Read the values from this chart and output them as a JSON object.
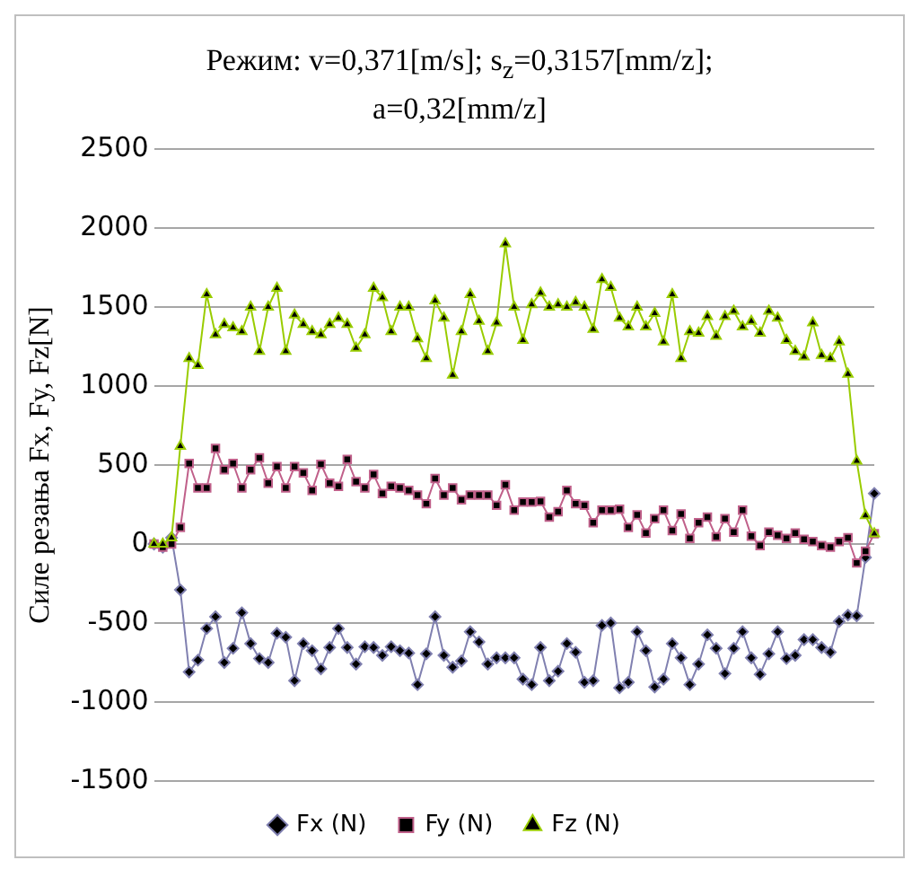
{
  "chart_data": {
    "type": "line",
    "title": "Режим: v=0,371[m/s]; s$_{z}$=0,3157[mm/z]; a=0,32[mm/z]",
    "ylabel": "Силе резања Fx, Fy, Fz[N]",
    "categories": [
      null,
      null,
      null,
      null,
      null,
      null,
      null,
      null,
      null,
      null,
      null,
      null,
      null,
      null,
      null,
      null,
      null,
      null,
      null,
      null,
      null,
      null,
      null,
      null,
      null,
      null,
      null,
      null,
      null,
      null,
      null,
      null,
      null,
      null,
      null,
      null,
      null,
      null,
      null,
      null,
      null,
      null,
      null,
      null,
      null,
      null,
      null,
      null,
      null,
      null,
      null,
      null,
      null,
      null,
      null,
      null,
      null,
      null,
      null,
      null,
      null,
      null,
      null,
      null,
      null,
      null,
      null,
      null,
      null,
      null,
      null,
      null,
      null,
      null,
      null,
      null,
      null,
      null,
      null,
      null,
      null,
      null,
      null
    ],
    "series": [
      {
        "name": "Fx (N)",
        "color": "#8080b0",
        "marker": "diamond",
        "values": [
          0,
          -20,
          40,
          -290,
          -810,
          -735,
          -535,
          -460,
          -750,
          -660,
          -435,
          -630,
          -725,
          -750,
          -565,
          -590,
          -865,
          -630,
          -675,
          -790,
          -655,
          -535,
          -655,
          -760,
          -650,
          -655,
          -705,
          -650,
          -675,
          -690,
          -890,
          -695,
          -460,
          -705,
          -780,
          -740,
          -555,
          -620,
          -760,
          -720,
          -720,
          -720,
          -855,
          -890,
          -655,
          -865,
          -805,
          -630,
          -685,
          -875,
          -865,
          -515,
          -500,
          -910,
          -875,
          -555,
          -675,
          -905,
          -855,
          -630,
          -720,
          -890,
          -760,
          -575,
          -660,
          -820,
          -660,
          -555,
          -720,
          -825,
          -695,
          -555,
          -725,
          -705,
          -605,
          -605,
          -655,
          -685,
          -490,
          -450,
          -455,
          -85,
          320
        ]
      },
      {
        "name": "Fy (N)",
        "color": "#c0608a",
        "marker": "square",
        "values": [
          0,
          -20,
          0,
          105,
          510,
          355,
          355,
          605,
          470,
          510,
          355,
          470,
          545,
          385,
          490,
          355,
          490,
          450,
          340,
          505,
          385,
          365,
          535,
          395,
          355,
          440,
          320,
          365,
          355,
          340,
          310,
          255,
          415,
          310,
          355,
          280,
          310,
          310,
          310,
          245,
          375,
          215,
          265,
          265,
          270,
          170,
          205,
          340,
          255,
          245,
          135,
          215,
          215,
          220,
          105,
          185,
          70,
          160,
          215,
          85,
          190,
          35,
          135,
          170,
          45,
          160,
          75,
          215,
          50,
          -10,
          75,
          55,
          35,
          70,
          30,
          15,
          -10,
          -20,
          15,
          40,
          -120,
          -45,
          65
        ]
      },
      {
        "name": "Fz (N)",
        "color": "#99cc00",
        "marker": "triangle",
        "values": [
          0,
          0,
          40,
          620,
          1175,
          1130,
          1580,
          1325,
          1390,
          1370,
          1345,
          1500,
          1220,
          1500,
          1620,
          1220,
          1450,
          1390,
          1345,
          1325,
          1390,
          1430,
          1390,
          1240,
          1325,
          1620,
          1560,
          1345,
          1500,
          1500,
          1300,
          1175,
          1540,
          1430,
          1070,
          1345,
          1580,
          1410,
          1220,
          1400,
          1900,
          1500,
          1290,
          1515,
          1590,
          1500,
          1515,
          1500,
          1530,
          1500,
          1360,
          1675,
          1625,
          1430,
          1375,
          1500,
          1375,
          1460,
          1280,
          1580,
          1175,
          1345,
          1335,
          1440,
          1315,
          1440,
          1475,
          1375,
          1410,
          1335,
          1475,
          1430,
          1290,
          1220,
          1185,
          1400,
          1195,
          1175,
          1280,
          1075,
          525,
          180,
          65
        ]
      }
    ],
    "ylim": [
      -1500,
      2500
    ],
    "yticks": [
      -1500,
      -1000,
      -500,
      0,
      500,
      1000,
      1500,
      2000,
      2500
    ],
    "grid": "y",
    "legend": "bottom",
    "tick_labels": "y"
  }
}
